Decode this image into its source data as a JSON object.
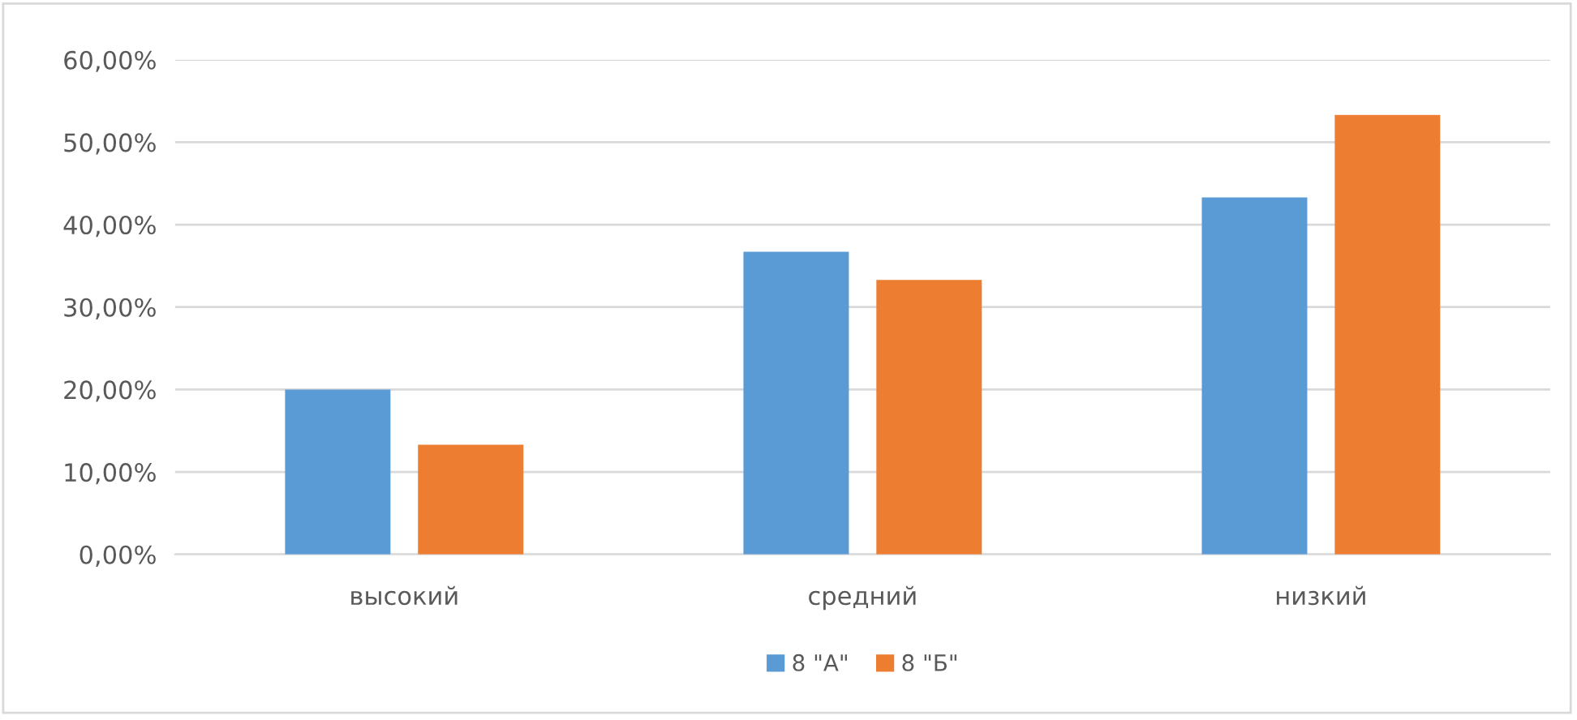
{
  "chart_data": {
    "type": "bar",
    "categories": [
      "высокий",
      "средний",
      "низкий"
    ],
    "series": [
      {
        "name": "8 \"А\"",
        "color": "#5b9bd5",
        "values": [
          20.0,
          36.7,
          43.3
        ]
      },
      {
        "name": "8 \"Б\"",
        "color": "#ed7d31",
        "values": [
          13.3,
          33.3,
          53.3
        ]
      }
    ],
    "ylim": [
      0,
      60
    ],
    "yticks": [
      {
        "value": 0,
        "label": "0,00%"
      },
      {
        "value": 10,
        "label": "10,00%"
      },
      {
        "value": 20,
        "label": "20,00%"
      },
      {
        "value": 30,
        "label": "30,00%"
      },
      {
        "value": 40,
        "label": "40,00%"
      },
      {
        "value": 50,
        "label": "50,00%"
      },
      {
        "value": 60,
        "label": "60,00%"
      }
    ],
    "grid": "y",
    "legend": "bottom"
  }
}
